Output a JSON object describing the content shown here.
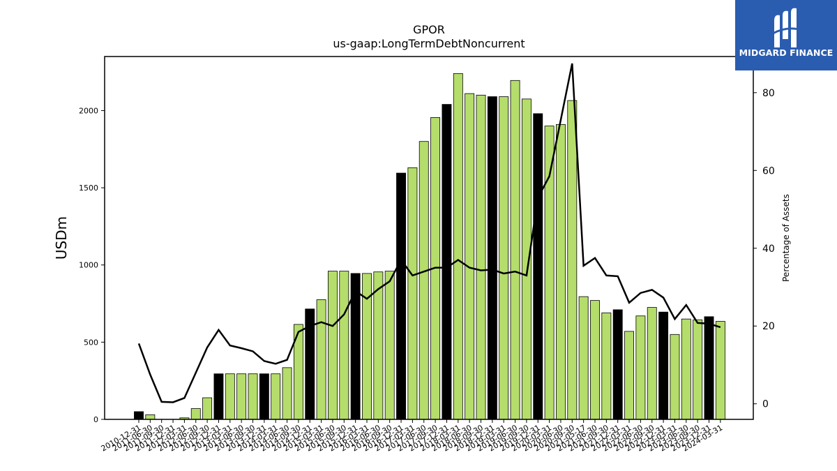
{
  "colors": {
    "bar_green": "#b5dd6b",
    "bar_black": "#000000",
    "line": "#000000",
    "logo_bg": "#2a5db0"
  },
  "logo": {
    "text": "MIDGARD FINANCE",
    "icon": "midgard-logo-icon"
  },
  "chart_data": {
    "type": "bar",
    "title": "GPOR",
    "subtitle": "us-gaap:LongTermDebtNoncurrent",
    "ylabel": "USDm",
    "y2label": "Percentage of Assets",
    "ylim": [
      0,
      2350
    ],
    "y2lim": [
      -4,
      87.5
    ],
    "yticks": [
      0,
      500,
      1000,
      1500,
      2000
    ],
    "y2ticks": [
      0,
      20,
      40,
      60,
      80
    ],
    "grid": false,
    "categories": [
      "2010-12-31",
      "2011-06-30",
      "2011-09-30",
      "2011-12-31",
      "2012-03-31",
      "2012-06-30",
      "2012-09-30",
      "2012-12-31",
      "2013-03-31",
      "2013-06-30",
      "2013-09-30",
      "2013-12-31",
      "2014-03-31",
      "2014-06-30",
      "2014-09-30",
      "2014-12-31",
      "2015-03-31",
      "2015-06-30",
      "2015-09-30",
      "2015-12-31",
      "2016-03-31",
      "2016-06-30",
      "2016-09-30",
      "2016-12-31",
      "2017-03-31",
      "2017-06-30",
      "2017-09-30",
      "2017-12-31",
      "2018-03-31",
      "2018-06-30",
      "2018-09-30",
      "2018-12-31",
      "2019-03-31",
      "2019-06-30",
      "2019-09-30",
      "2019-12-31",
      "2020-03-31",
      "2020-06-30",
      "2020-09-30",
      "2021-05-17",
      "2021-06-30",
      "2021-09-30",
      "2021-12-31",
      "2022-03-31",
      "2022-06-30",
      "2022-09-30",
      "2022-12-31",
      "2023-03-31",
      "2023-06-30",
      "2023-09-30",
      "2023-12-31",
      "2024-03-31"
    ],
    "bar_values": [
      50,
      30,
      0,
      0,
      10,
      70,
      140,
      295,
      295,
      295,
      295,
      295,
      295,
      335,
      615,
      715,
      775,
      960,
      960,
      945,
      945,
      955,
      960,
      1595,
      1630,
      1800,
      1955,
      2040,
      2240,
      2110,
      2100,
      2090,
      2090,
      2195,
      2075,
      1980,
      1900,
      1910,
      2065,
      795,
      770,
      690,
      710,
      570,
      670,
      725,
      695,
      550,
      650,
      645,
      665,
      635
    ],
    "bar_is_black": [
      1,
      0,
      0,
      0,
      0,
      0,
      0,
      1,
      0,
      0,
      0,
      1,
      0,
      0,
      0,
      1,
      0,
      0,
      0,
      1,
      0,
      0,
      0,
      1,
      0,
      0,
      0,
      1,
      0,
      0,
      0,
      1,
      0,
      0,
      0,
      1,
      0,
      0,
      0,
      0,
      0,
      0,
      1,
      0,
      0,
      0,
      1,
      0,
      0,
      0,
      1,
      0
    ],
    "series": [
      {
        "values": [
          15.5,
          7.5,
          0.5,
          0.4,
          1.5,
          8,
          14.5,
          19,
          15,
          14.3,
          13.5,
          11,
          10.3,
          11.3,
          18.5,
          20,
          21,
          20,
          23,
          29,
          27,
          29.5,
          31.5,
          37,
          33,
          34,
          35,
          35,
          37,
          35,
          34.3,
          34.5,
          33.5,
          34,
          33,
          53,
          58.5,
          73,
          87.5,
          35.5,
          37.5,
          33,
          32.8,
          26,
          28.5,
          29.3,
          27.3,
          21.8,
          25.4,
          20.8,
          20.6,
          19.7
        ]
      }
    ]
  }
}
